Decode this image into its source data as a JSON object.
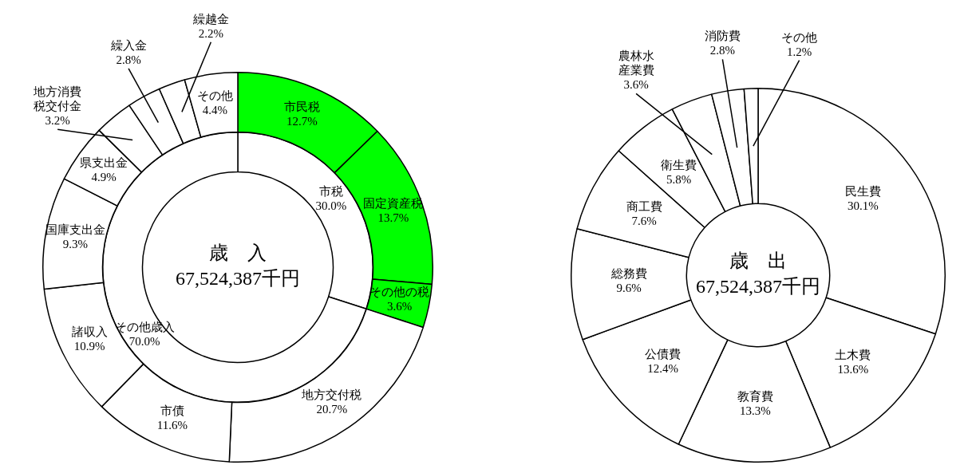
{
  "chart_data": [
    {
      "type": "donut",
      "title": "歳　入",
      "subtitle": "67,524,387千円",
      "categories": [
        "市税",
        "その他歳入"
      ],
      "values": [
        30.0,
        70.0
      ],
      "colors": [
        "#ffffff",
        "#ffffff"
      ],
      "value_labels": [
        "30.0%",
        "70.0%"
      ]
    },
    {
      "type": "donut",
      "categories": [
        "市民税",
        "固定資産税",
        "その他の税",
        "地方交付税",
        "市債",
        "諸収入",
        "国庫支出金",
        "県支出金",
        "地方消費税交付金",
        "繰入金",
        "繰越金",
        "その他"
      ],
      "values": [
        12.7,
        13.7,
        3.6,
        20.7,
        11.6,
        10.9,
        9.3,
        4.9,
        3.2,
        2.8,
        2.2,
        4.4
      ],
      "colors": [
        "#00ff00",
        "#00ff00",
        "#00ff00",
        "#ffffff",
        "#ffffff",
        "#ffffff",
        "#ffffff",
        "#ffffff",
        "#ffffff",
        "#ffffff",
        "#ffffff",
        "#ffffff"
      ],
      "value_labels": [
        "12.7%",
        "13.7%",
        "3.6%",
        "20.7%",
        "11.6%",
        "10.9%",
        "9.3%",
        "4.9%",
        "3.2%",
        "2.8%",
        "2.2%",
        "4.4%"
      ]
    },
    {
      "type": "donut",
      "title": "歳　出",
      "subtitle": "67,524,387千円",
      "categories": [
        "民生費",
        "土木費",
        "教育費",
        "公債費",
        "総務費",
        "商工費",
        "衛生費",
        "農林水産業費",
        "消防費",
        "その他"
      ],
      "values": [
        30.1,
        13.6,
        13.3,
        12.4,
        9.6,
        7.6,
        5.8,
        3.6,
        2.8,
        1.2
      ],
      "colors": [
        "#ffffff",
        "#ffffff",
        "#ffffff",
        "#ffffff",
        "#ffffff",
        "#ffffff",
        "#ffffff",
        "#ffffff",
        "#ffffff",
        "#ffffff"
      ],
      "value_labels": [
        "30.1%",
        "13.6%",
        "13.3%",
        "12.4%",
        "9.6%",
        "7.6%",
        "5.8%",
        "3.6%",
        "2.8%",
        "1.2%"
      ]
    }
  ]
}
